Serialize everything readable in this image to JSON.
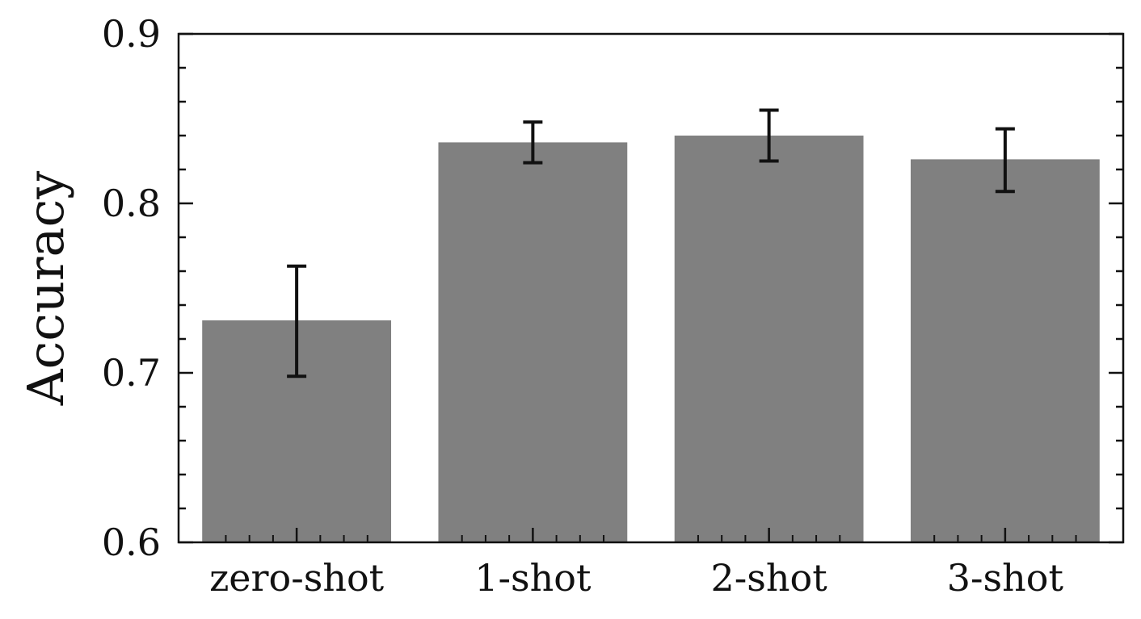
{
  "chart_data": {
    "type": "bar",
    "title": "",
    "xlabel": "",
    "ylabel": "Accuracy",
    "categories": [
      "zero-shot",
      "1-shot",
      "2-shot",
      "3-shot"
    ],
    "values": [
      0.731,
      0.836,
      0.84,
      0.826
    ],
    "error_low": [
      0.698,
      0.824,
      0.825,
      0.807
    ],
    "error_high": [
      0.763,
      0.848,
      0.855,
      0.844
    ],
    "ylim": [
      0.6,
      0.9
    ],
    "yticks": [
      "0.6",
      "0.7",
      "0.8",
      "0.9"
    ],
    "ytick_values": [
      0.6,
      0.7,
      0.8,
      0.9
    ],
    "grid": false,
    "bar_color": "#808080",
    "error_color": "#111111"
  }
}
